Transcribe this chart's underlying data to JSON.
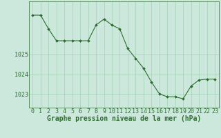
{
  "hours": [
    0,
    1,
    2,
    3,
    4,
    5,
    6,
    7,
    8,
    9,
    10,
    11,
    12,
    13,
    14,
    15,
    16,
    17,
    18,
    19,
    20,
    21,
    22,
    23
  ],
  "pressure": [
    1027.0,
    1027.0,
    1026.3,
    1025.7,
    1025.7,
    1025.7,
    1025.7,
    1025.7,
    1026.5,
    1026.8,
    1026.5,
    1026.3,
    1025.3,
    1024.8,
    1024.3,
    1023.6,
    1023.0,
    1022.85,
    1022.85,
    1022.75,
    1023.4,
    1023.7,
    1023.75,
    1023.75
  ],
  "line_color": "#2d6e2d",
  "marker_color": "#2d6e2d",
  "bg_color": "#cce8dd",
  "grid_color": "#99ccaa",
  "ylabel_ticks": [
    1023,
    1024,
    1025
  ],
  "xlabel": "Graphe pression niveau de la mer (hPa)",
  "xlabel_fontsize": 7,
  "tick_fontsize": 6,
  "ylim": [
    1022.3,
    1027.7
  ],
  "xlim": [
    -0.5,
    23.5
  ]
}
